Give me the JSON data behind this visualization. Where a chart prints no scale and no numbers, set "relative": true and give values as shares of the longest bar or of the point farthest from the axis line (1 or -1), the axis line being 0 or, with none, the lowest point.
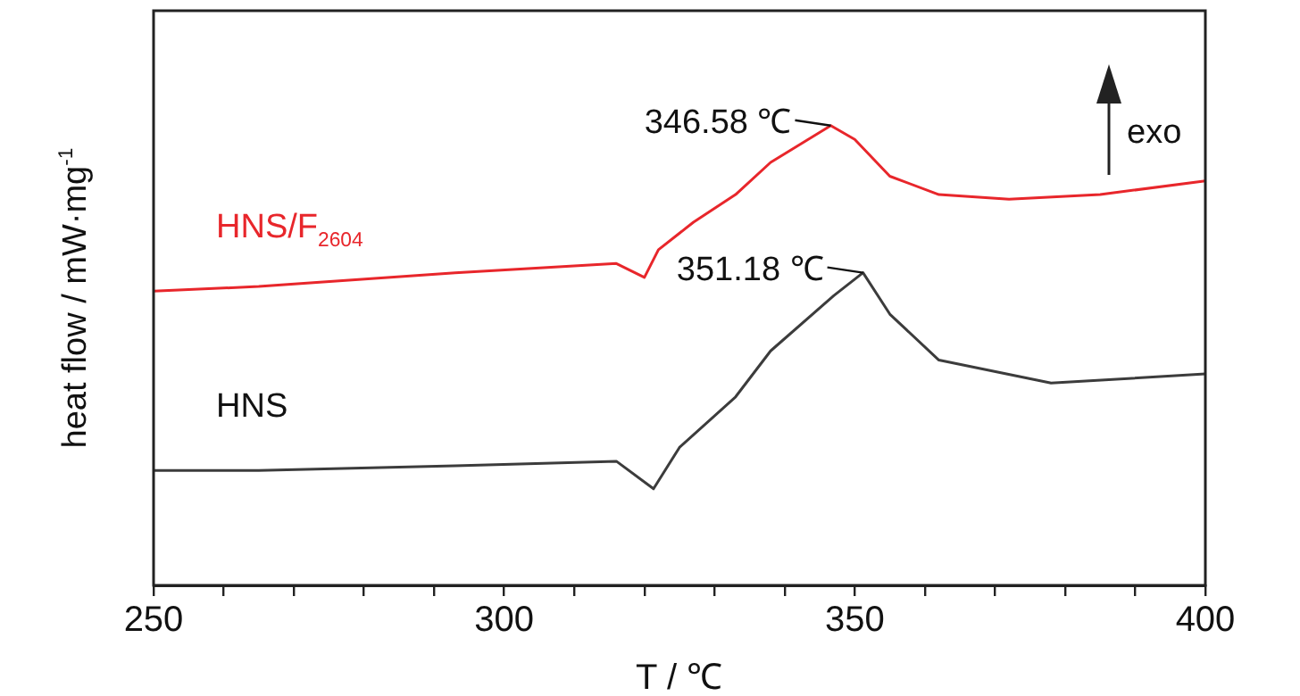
{
  "chart_data": {
    "type": "line",
    "relative": true,
    "xlabel": "T / ℃",
    "ylabel": "heat flow / mW·mg$^{-1}$",
    "xlim": [
      250,
      400
    ],
    "xticks": [
      250,
      {
        "value": 260,
        "label": null
      },
      {
        "value": 270,
        "label": null
      },
      {
        "value": 280,
        "label": null
      },
      {
        "value": 290,
        "label": null
      },
      300,
      {
        "value": 310,
        "label": null
      },
      {
        "value": 320,
        "label": null
      },
      {
        "value": 330,
        "label": null
      },
      {
        "value": 340,
        "label": null
      },
      350,
      {
        "value": 360,
        "label": null
      },
      {
        "value": 370,
        "label": null
      },
      {
        "value": 380,
        "label": null
      },
      {
        "value": 390,
        "label": null
      },
      400
    ],
    "series": [
      {
        "name": "HNS/F$_{2604}$",
        "color": "#e8262b",
        "x": [
          250,
          265,
          293,
          316,
          320,
          322,
          327,
          333,
          338,
          346.58,
          350,
          355,
          362,
          372,
          385,
          400
        ],
        "values": [
          0.64,
          0.65,
          0.68,
          0.7,
          0.67,
          0.73,
          0.79,
          0.85,
          0.92,
          1,
          0.97,
          0.89,
          0.85,
          0.84,
          0.85,
          0.88
        ]
      },
      {
        "name": "HNS",
        "color": "#3c3c3c",
        "x": [
          250,
          265,
          293,
          316,
          321.3,
          325,
          333,
          338,
          347,
          351.18,
          355,
          362,
          378,
          400
        ],
        "values": [
          0.25,
          0.25,
          0.26,
          0.27,
          0.21,
          0.3,
          0.41,
          0.51,
          0.63,
          0.68,
          0.59,
          0.49,
          0.44,
          0.46
        ]
      }
    ],
    "annotations": [
      {
        "text": "346.58 ℃",
        "x": 346.58,
        "y": 1
      },
      {
        "text": "351.18 ℃",
        "x": 351.18,
        "y": 0.68
      },
      "exo"
    ],
    "legend": false,
    "grid": false,
    "marker": "none",
    "line_style": "solid"
  }
}
